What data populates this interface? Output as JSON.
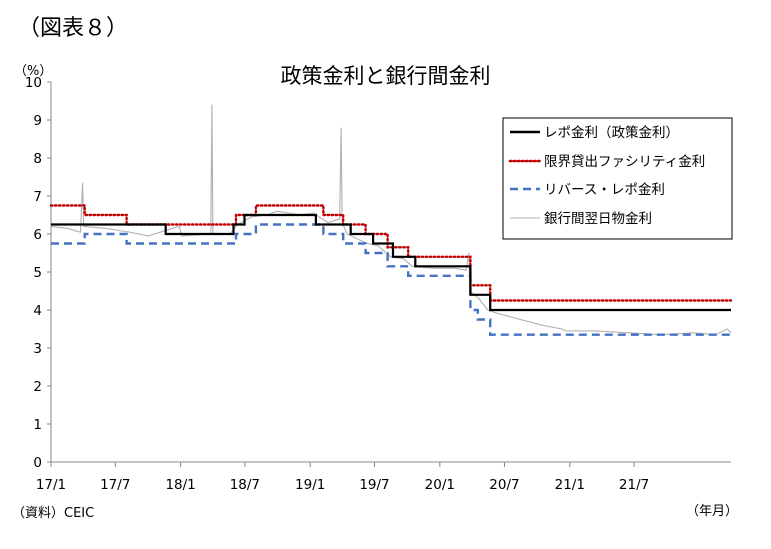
{
  "figure_label": "（図表８）",
  "chart_data": {
    "type": "line",
    "title": "政策金利と銀行間金利",
    "ylabel": "（%）",
    "xlabel": "（年月）",
    "source": "（資料）CEIC",
    "ylim": [
      0,
      10
    ],
    "yticks": [
      "0",
      "1",
      "2",
      "3",
      "4",
      "5",
      "6",
      "7",
      "8",
      "9",
      "10"
    ],
    "xlim": [
      "2017-01",
      "2022-03"
    ],
    "xticks": [
      "17/1",
      "17/7",
      "18/1",
      "18/7",
      "19/1",
      "19/7",
      "20/1",
      "20/7",
      "21/1",
      "21/7"
    ],
    "grid": false,
    "legend_position": "top-right",
    "series": [
      {
        "name": "レポ金利（政策金利）",
        "color": "#000000",
        "style": "solid",
        "step": true,
        "points": [
          [
            "2017-01-01",
            6.25
          ],
          [
            "2017-11-20",
            6.0
          ],
          [
            "2018-05-30",
            6.25
          ],
          [
            "2018-06-30",
            6.5
          ],
          [
            "2019-01-17",
            6.25
          ],
          [
            "2019-04-25",
            6.0
          ],
          [
            "2019-06-27",
            5.75
          ],
          [
            "2019-08-22",
            5.4
          ],
          [
            "2019-10-24",
            5.15
          ],
          [
            "2020-03-27",
            4.4
          ],
          [
            "2020-05-22",
            4.0
          ],
          [
            "2022-03-31",
            4.0
          ]
        ]
      },
      {
        "name": "限界貸出ファシリティ金利",
        "color": "#c00000",
        "style": "dotted",
        "step": true,
        "points": [
          [
            "2017-01-01",
            6.75
          ],
          [
            "2017-04-06",
            6.5
          ],
          [
            "2017-08-02",
            6.25
          ],
          [
            "2018-06-06",
            6.5
          ],
          [
            "2018-08-01",
            6.75
          ],
          [
            "2019-02-07",
            6.5
          ],
          [
            "2019-04-04",
            6.25
          ],
          [
            "2019-06-06",
            6.0
          ],
          [
            "2019-08-07",
            5.65
          ],
          [
            "2019-10-04",
            5.4
          ],
          [
            "2020-03-27",
            4.65
          ],
          [
            "2020-05-22",
            4.25
          ],
          [
            "2022-03-31",
            4.25
          ]
        ]
      },
      {
        "name": "リバース・レポ金利",
        "color": "#4472c4",
        "style": "dashed",
        "step": true,
        "points": [
          [
            "2017-01-01",
            5.75
          ],
          [
            "2017-04-06",
            6.0
          ],
          [
            "2017-08-02",
            5.75
          ],
          [
            "2018-06-06",
            6.0
          ],
          [
            "2018-08-01",
            6.25
          ],
          [
            "2019-02-07",
            6.0
          ],
          [
            "2019-04-04",
            5.75
          ],
          [
            "2019-06-06",
            5.5
          ],
          [
            "2019-08-07",
            5.15
          ],
          [
            "2019-10-04",
            4.9
          ],
          [
            "2020-03-27",
            4.0
          ],
          [
            "2020-04-17",
            3.75
          ],
          [
            "2020-05-22",
            3.35
          ],
          [
            "2022-03-31",
            3.35
          ]
        ]
      },
      {
        "name": "銀行間翌日物金利",
        "color": "#b0b0b0",
        "style": "solid",
        "step": false,
        "points": [
          [
            "2017-01-01",
            6.2
          ],
          [
            "2017-02-15",
            6.15
          ],
          [
            "2017-03-25",
            6.05
          ],
          [
            "2017-03-31",
            7.35
          ],
          [
            "2017-04-03",
            6.2
          ],
          [
            "2017-06-01",
            6.15
          ],
          [
            "2017-08-10",
            6.05
          ],
          [
            "2017-10-01",
            5.95
          ],
          [
            "2017-12-28",
            6.2
          ],
          [
            "2018-01-05",
            5.95
          ],
          [
            "2018-03-27",
            6.0
          ],
          [
            "2018-03-30",
            9.4
          ],
          [
            "2018-04-02",
            6.0
          ],
          [
            "2018-05-20",
            6.0
          ],
          [
            "2018-06-10",
            6.25
          ],
          [
            "2018-07-20",
            6.45
          ],
          [
            "2018-09-01",
            6.5
          ],
          [
            "2018-10-01",
            6.6
          ],
          [
            "2018-12-01",
            6.5
          ],
          [
            "2019-01-10",
            6.55
          ],
          [
            "2019-02-20",
            6.3
          ],
          [
            "2019-03-25",
            6.4
          ],
          [
            "2019-03-29",
            8.8
          ],
          [
            "2019-04-01",
            6.3
          ],
          [
            "2019-04-15",
            6.0
          ],
          [
            "2019-06-10",
            5.75
          ],
          [
            "2019-07-10",
            5.7
          ],
          [
            "2019-08-15",
            5.4
          ],
          [
            "2019-09-20",
            5.35
          ],
          [
            "2019-10-15",
            5.15
          ],
          [
            "2019-12-15",
            5.1
          ],
          [
            "2020-02-10",
            5.1
          ],
          [
            "2020-03-15",
            5.05
          ],
          [
            "2020-03-23",
            5.5
          ],
          [
            "2020-03-26",
            4.5
          ],
          [
            "2020-04-20",
            4.3
          ],
          [
            "2020-05-15",
            4.0
          ],
          [
            "2020-06-15",
            3.9
          ],
          [
            "2020-08-15",
            3.75
          ],
          [
            "2020-10-15",
            3.6
          ],
          [
            "2020-12-10",
            3.5
          ],
          [
            "2020-12-20",
            3.45
          ],
          [
            "2021-03-15",
            3.45
          ],
          [
            "2021-06-15",
            3.4
          ],
          [
            "2021-09-15",
            3.35
          ],
          [
            "2021-12-15",
            3.4
          ],
          [
            "2022-02-15",
            3.35
          ],
          [
            "2022-03-20",
            3.5
          ],
          [
            "2022-03-31",
            3.4
          ]
        ]
      }
    ]
  }
}
